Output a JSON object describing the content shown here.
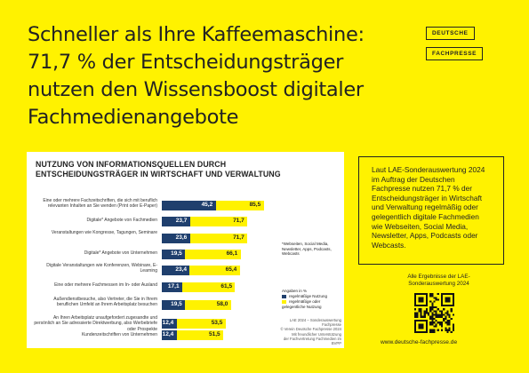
{
  "headline": [
    "Schneller als Ihre Kaffeemaschine:",
    "71,7 % der Entscheidungsträger",
    "nutzen den Wissensboost digitaler",
    "Fachmedienangebote"
  ],
  "logo": {
    "line1": "DEUTSCHE",
    "line2": "FACHPRESSE"
  },
  "chart_data": {
    "type": "bar",
    "orientation": "horizontal",
    "title": "NUTZUNG VON INFORMATIONSQUELLEN DURCH ENTSCHEIDUNGSTRÄGER IN WIRTSCHAFT UND VERWALTUNG",
    "categories": [
      "Eine oder mehrere Fachzeitschriften, die sich mit beruflich relevanten Inhalten an Sie wenden (Print oder E-Paper)",
      "Digitale* Angebote von Fachmedien",
      "Veranstaltungen wie Kongresse, Tagungen, Seminare",
      "Digitale* Angebote von Unternehmen",
      "Digitale Veranstaltungen wie Konferenzen, Webinare, E-Learning",
      "Eine oder mehrere Fachmessen im In- oder Ausland",
      "Außendienstbesuche, also Vertreter, die Sie in Ihrem beruflichen Umfeld an Ihrem Arbeitsplatz besuchen",
      "An Ihren Arbeitsplatz unaufgefordert zugesandte und persönlich an Sie adressierte Direktwerbung, also Werbebriefe oder Prospekte",
      "Kundenzeitschriften von Unternehmen"
    ],
    "series": [
      {
        "name": "regelmäßige Nutzung",
        "color": "#1f3f6d",
        "values": [
          45.2,
          23.7,
          23.6,
          19.5,
          23.4,
          17.1,
          19.5,
          12.4,
          12.4
        ]
      },
      {
        "name": "regelmäßige oder gelegentliche Nutzung",
        "color": "#fff200",
        "values": [
          85.5,
          71.7,
          71.7,
          66.1,
          65.4,
          61.5,
          58.0,
          53.5,
          51.5
        ]
      }
    ],
    "value_labels_inner": [
      "45,2",
      "23,7",
      "23,6",
      "19,5",
      "23,4",
      "17,1",
      "19,5",
      "12,4",
      "12,4"
    ],
    "value_labels_outer": [
      "85,5",
      "71,7",
      "71,7",
      "66,1",
      "65,4",
      "61,5",
      "58,0",
      "53,5",
      "51,5"
    ],
    "unit": "Angaben in %",
    "xlim": [
      0,
      100
    ]
  },
  "note": "*Webseiten, Social Media, Newsletter, Apps, Podcasts, Webcasts",
  "legend": {
    "unit": "Angaben in %",
    "items": [
      "regelmäßige Nutzung",
      "regelmäßige oder gelegentliche Nutzung"
    ]
  },
  "source": [
    "LAE 2024 – Sonderauswertung Fachpresse",
    "© Verein Deutsche Fachpresse 2024",
    "Mit freundlicher Unterstützung",
    "der Fachvertretung Fachmedien im BVPP"
  ],
  "infobox": "Laut LAE-Sonderauswertung 2024 im Auftrag der Deutschen Fachpresse nutzen 71,7 % der Entscheidungsträger in Wirtschaft und Verwaltung regelmäßig oder gelegentlich digitale Fachmedien wie Webseiten, Social Media, Newsletter, Apps, Podcasts oder Webcasts.",
  "more": "Alle Ergebnisse der LAE-Sonderauswertung 2024",
  "url": "www.deutsche-fachpresse.de"
}
